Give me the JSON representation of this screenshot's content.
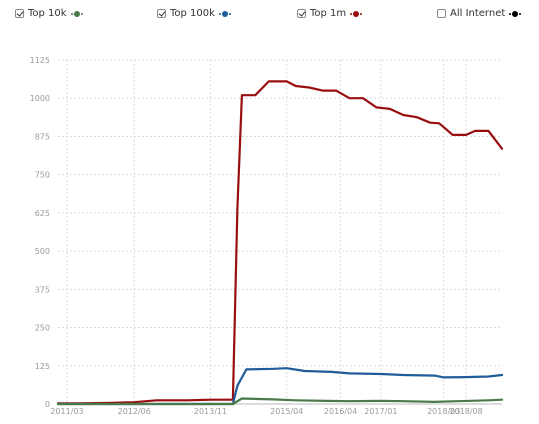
{
  "legend": [
    {
      "label": "Top 10k",
      "checked": true,
      "color": "#4a7a4a",
      "icon": "green-dot-icon"
    },
    {
      "label": "Top 100k",
      "checked": true,
      "color": "#1f5c99",
      "icon": "blue-dot-icon"
    },
    {
      "label": "Top 1m",
      "checked": true,
      "color": "#990f0f",
      "icon": "red-dot-icon"
    },
    {
      "label": "All Internet",
      "checked": false,
      "color": "#000000",
      "icon": "black-dot-icon"
    }
  ],
  "chart_data": {
    "type": "line",
    "title": "",
    "xlabel": "",
    "ylabel": "",
    "ylim": [
      0,
      1125
    ],
    "yticks": [
      0,
      125,
      250,
      375,
      500,
      625,
      750,
      875,
      1000,
      1125
    ],
    "xticks": [
      "2011/03",
      "2012/06",
      "2013/11",
      "2015/04",
      "2016/04",
      "2017/01",
      "2018/03",
      "2018/08"
    ],
    "grid": true,
    "legend_position": "top",
    "series": [
      {
        "name": "Top 1m",
        "color": "#990f0f",
        "points": [
          [
            "2011/01",
            2
          ],
          [
            "2011/06",
            2
          ],
          [
            "2012/01",
            4
          ],
          [
            "2012/06",
            6
          ],
          [
            "2012/11",
            12
          ],
          [
            "2013/06",
            12
          ],
          [
            "2013/11",
            14
          ],
          [
            "2014/04",
            14
          ],
          [
            "2014/05",
            640
          ],
          [
            "2014/06",
            1010
          ],
          [
            "2014/09",
            1010
          ],
          [
            "2014/12",
            1055
          ],
          [
            "2015/04",
            1055
          ],
          [
            "2015/06",
            1040
          ],
          [
            "2015/09",
            1035
          ],
          [
            "2015/12",
            1025
          ],
          [
            "2016/03",
            1025
          ],
          [
            "2016/06",
            1000
          ],
          [
            "2016/09",
            1000
          ],
          [
            "2016/12",
            970
          ],
          [
            "2017/03",
            965
          ],
          [
            "2017/06",
            945
          ],
          [
            "2017/09",
            938
          ],
          [
            "2017/12",
            920
          ],
          [
            "2018/02",
            918
          ],
          [
            "2018/05",
            880
          ],
          [
            "2018/08",
            880
          ],
          [
            "2018/10",
            893
          ],
          [
            "2019/01",
            893
          ],
          [
            "2019/04",
            835
          ]
        ]
      },
      {
        "name": "Top 100k",
        "color": "#1f5c99",
        "points": [
          [
            "2011/01",
            0
          ],
          [
            "2014/04",
            0
          ],
          [
            "2014/05",
            60
          ],
          [
            "2014/07",
            113
          ],
          [
            "2015/01",
            115
          ],
          [
            "2015/04",
            117
          ],
          [
            "2015/08",
            108
          ],
          [
            "2016/02",
            105
          ],
          [
            "2016/06",
            100
          ],
          [
            "2017/01",
            98
          ],
          [
            "2017/06",
            95
          ],
          [
            "2018/01",
            93
          ],
          [
            "2018/03",
            87
          ],
          [
            "2018/08",
            88
          ],
          [
            "2019/01",
            90
          ],
          [
            "2019/04",
            95
          ]
        ]
      },
      {
        "name": "Top 10k",
        "color": "#4a7a4a",
        "points": [
          [
            "2011/01",
            0
          ],
          [
            "2014/04",
            0
          ],
          [
            "2014/06",
            18
          ],
          [
            "2015/01",
            15
          ],
          [
            "2015/06",
            12
          ],
          [
            "2016/01",
            10
          ],
          [
            "2016/06",
            9
          ],
          [
            "2017/01",
            10
          ],
          [
            "2017/06",
            9
          ],
          [
            "2018/01",
            7
          ],
          [
            "2018/06",
            9
          ],
          [
            "2019/01",
            12
          ],
          [
            "2019/04",
            14
          ]
        ]
      }
    ]
  }
}
